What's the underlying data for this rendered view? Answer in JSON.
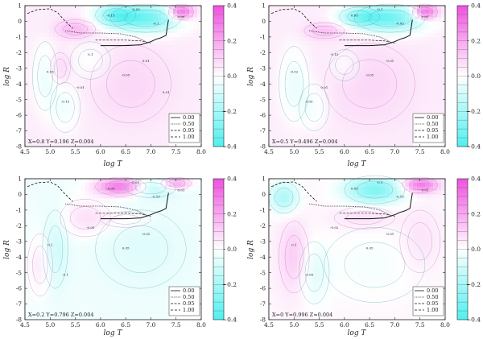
{
  "chart_data": [
    {
      "type": "heatmap",
      "panel": "top-left",
      "composition_label": "X=0.8  Y=0.196  Z=0.004",
      "xlabel": "log T",
      "ylabel": "log R",
      "xlim": [
        4.5,
        8.0
      ],
      "ylim": [
        -8,
        1
      ],
      "xticks": [
        "4.5",
        "5.0",
        "5.5",
        "6.0",
        "6.5",
        "7.0",
        "7.5",
        "8.0"
      ],
      "yticks": [
        "1",
        "0",
        "-1",
        "-2",
        "-3",
        "-4",
        "-5",
        "-6",
        "-7",
        "-8"
      ],
      "colorbar": {
        "range": [
          -0.4,
          0.4
        ],
        "ticks": [
          "0.4",
          "0.2",
          "0.0",
          "−0.2",
          "−0.4"
        ]
      },
      "legend": {
        "position": "bottom-right",
        "entries": [
          "0.00",
          "0.50",
          "0.95",
          "1.00"
        ]
      },
      "contour_labels": [
        "-0.05",
        "-0.15",
        "-0.1",
        "0.05",
        "-0.15",
        "-0.05",
        "0.1",
        "0.05",
        "0.01",
        "-0.01",
        "0.01"
      ],
      "blobs": [
        {
          "x": 6.9,
          "y": 0.2,
          "v": -0.35,
          "rx": 0.7,
          "ry": 0.9
        },
        {
          "x": 6.3,
          "y": 0.4,
          "v": -0.25,
          "rx": 0.4,
          "ry": 0.7
        },
        {
          "x": 7.6,
          "y": 0.6,
          "v": 0.35,
          "rx": 0.25,
          "ry": 0.5
        },
        {
          "x": 4.9,
          "y": -3.5,
          "v": -0.08,
          "rx": 0.25,
          "ry": 2.2
        },
        {
          "x": 5.3,
          "y": -5.5,
          "v": -0.07,
          "rx": 0.3,
          "ry": 1.6
        },
        {
          "x": 5.2,
          "y": -3.0,
          "v": 0.06,
          "rx": 0.2,
          "ry": 1.0
        },
        {
          "x": 6.6,
          "y": -4.0,
          "v": 0.05,
          "rx": 0.8,
          "ry": 2.5
        },
        {
          "x": 5.8,
          "y": -2.5,
          "v": -0.05,
          "rx": 0.4,
          "ry": 1.2
        },
        {
          "x": 5.5,
          "y": -0.5,
          "v": 0.12,
          "rx": 0.4,
          "ry": 0.6
        }
      ],
      "base": 0.04
    },
    {
      "type": "heatmap",
      "panel": "top-right",
      "composition_label": "X=0.5  Y=0.496  Z=0.004",
      "xlabel": "log T",
      "ylabel": "log R",
      "xlim": [
        4.5,
        8.0
      ],
      "ylim": [
        -8,
        1
      ],
      "xticks": [
        "4.5",
        "5.0",
        "5.5",
        "6.0",
        "6.5",
        "7.0",
        "7.5",
        "8.0"
      ],
      "yticks": [
        "1",
        "0",
        "-1",
        "-2",
        "-3",
        "-4",
        "-5",
        "-6",
        "-7",
        "-8"
      ],
      "colorbar": {
        "range": [
          -0.4,
          0.4
        ],
        "ticks": [
          "0.4",
          "0.2",
          "0.0",
          "−0.2",
          "−0.4"
        ]
      },
      "legend": {
        "position": "bottom-right",
        "entries": [
          "0.00",
          "0.50",
          "0.95",
          "1.00"
        ]
      },
      "contour_labels": [
        "-0.1",
        "0.05",
        "-0.05",
        "-0.02",
        "0.05",
        "-0.05",
        "-0.15",
        "0.01",
        "-0.01",
        "0.01"
      ],
      "blobs": [
        {
          "x": 6.9,
          "y": 0.2,
          "v": -0.35,
          "rx": 0.7,
          "ry": 0.9
        },
        {
          "x": 6.3,
          "y": 0.3,
          "v": -0.2,
          "rx": 0.4,
          "ry": 0.6
        },
        {
          "x": 7.6,
          "y": 0.6,
          "v": 0.35,
          "rx": 0.25,
          "ry": 0.5
        },
        {
          "x": 5.0,
          "y": -4.0,
          "v": -0.08,
          "rx": 0.3,
          "ry": 2.4
        },
        {
          "x": 5.4,
          "y": -5.5,
          "v": -0.06,
          "rx": 0.3,
          "ry": 1.5
        },
        {
          "x": 6.5,
          "y": -4.0,
          "v": 0.05,
          "rx": 0.9,
          "ry": 2.6
        },
        {
          "x": 5.6,
          "y": -0.6,
          "v": 0.1,
          "rx": 0.4,
          "ry": 0.5
        },
        {
          "x": 6.0,
          "y": -2.8,
          "v": -0.05,
          "rx": 0.3,
          "ry": 1.0
        }
      ],
      "base": 0.04
    },
    {
      "type": "heatmap",
      "panel": "bottom-left",
      "composition_label": "X=0.2  Y=0.796  Z=0.004",
      "xlabel": "log T",
      "ylabel": "log R",
      "xlim": [
        4.5,
        8.0
      ],
      "ylim": [
        -8,
        1
      ],
      "xticks": [
        "4.5",
        "5.0",
        "5.5",
        "6.0",
        "6.5",
        "7.0",
        "7.5",
        "8.0"
      ],
      "yticks": [
        "1",
        "0",
        "-1",
        "-2",
        "-3",
        "-4",
        "-5",
        "-6",
        "-7",
        "-8"
      ],
      "colorbar": {
        "range": [
          -0.4,
          0.4
        ],
        "ticks": [
          "0.4",
          "0.2",
          "0.0",
          "−0.2",
          "−0.4"
        ]
      },
      "legend": {
        "position": "bottom-right",
        "entries": [
          "0.00",
          "0.50",
          "0.95",
          "1.00"
        ]
      },
      "contour_labels": [
        "0.05",
        "-0.05",
        "-0.15",
        "0.1",
        "-0.1",
        "0.05",
        "-0.05",
        "0.01",
        "-0.01"
      ],
      "blobs": [
        {
          "x": 6.4,
          "y": 0.5,
          "v": 0.35,
          "rx": 0.5,
          "ry": 0.6
        },
        {
          "x": 7.0,
          "y": 0.4,
          "v": -0.15,
          "rx": 0.5,
          "ry": 0.6
        },
        {
          "x": 7.5,
          "y": 0.7,
          "v": 0.25,
          "rx": 0.3,
          "ry": 0.4
        },
        {
          "x": 4.8,
          "y": -4.5,
          "v": 0.08,
          "rx": 0.25,
          "ry": 2.0
        },
        {
          "x": 5.1,
          "y": -3.5,
          "v": -0.08,
          "rx": 0.25,
          "ry": 2.5
        },
        {
          "x": 5.7,
          "y": -1.5,
          "v": 0.1,
          "rx": 0.5,
          "ry": 1.2
        },
        {
          "x": 6.8,
          "y": -3.5,
          "v": -0.04,
          "rx": 0.9,
          "ry": 2.5
        },
        {
          "x": 6.5,
          "y": -1.6,
          "v": 0.05,
          "rx": 0.5,
          "ry": 0.5
        }
      ],
      "base": -0.03
    },
    {
      "type": "heatmap",
      "panel": "bottom-right",
      "composition_label": "X=0  Y=0.996  Z=0.004",
      "xlabel": "log T",
      "ylabel": "log R",
      "xlim": [
        4.5,
        8.0
      ],
      "ylim": [
        -8,
        1
      ],
      "xticks": [
        "4.5",
        "5.0",
        "5.5",
        "6.0",
        "6.5",
        "7.0",
        "7.5",
        "8.0"
      ],
      "yticks": [
        "1",
        "0",
        "-1",
        "-2",
        "-3",
        "-4",
        "-5",
        "-6",
        "-7",
        "-8"
      ],
      "colorbar": {
        "range": [
          -0.4,
          0.4
        ],
        "ticks": [
          "0.4",
          "0.2",
          "0.0",
          "−0.2",
          "−0.4"
        ]
      },
      "legend": {
        "position": "bottom-right",
        "entries": [
          "0.00",
          "0.50",
          "0.95",
          "1.00"
        ]
      },
      "contour_labels": [
        "-0.1",
        "0.05",
        "-0.15",
        "0.1",
        "-0.05",
        "0.05",
        "-0.02",
        "0.01",
        "-0.01"
      ],
      "blobs": [
        {
          "x": 6.6,
          "y": 0.3,
          "v": -0.3,
          "rx": 0.6,
          "ry": 0.9
        },
        {
          "x": 7.5,
          "y": 0.6,
          "v": 0.3,
          "rx": 0.35,
          "ry": 0.5
        },
        {
          "x": 4.8,
          "y": -0.2,
          "v": -0.2,
          "rx": 0.3,
          "ry": 1.0
        },
        {
          "x": 5.0,
          "y": -4.0,
          "v": 0.1,
          "rx": 0.3,
          "ry": 2.3
        },
        {
          "x": 5.4,
          "y": -5.0,
          "v": -0.08,
          "rx": 0.3,
          "ry": 2.0
        },
        {
          "x": 6.6,
          "y": -4.5,
          "v": -0.04,
          "rx": 1.0,
          "ry": 2.4
        },
        {
          "x": 6.4,
          "y": -1.5,
          "v": 0.06,
          "rx": 0.6,
          "ry": 0.7
        },
        {
          "x": 7.5,
          "y": -3.0,
          "v": 0.05,
          "rx": 0.4,
          "ry": 2.0
        }
      ],
      "base": 0.02
    }
  ],
  "curves": {
    "dashed_upper": {
      "x": [
        4.55,
        4.75,
        5.0,
        5.15,
        5.3,
        5.45
      ],
      "y": [
        0.5,
        0.75,
        0.8,
        0.55,
        0.0,
        -0.45
      ]
    },
    "dotted": {
      "x": [
        5.3,
        5.6,
        6.0,
        6.4,
        6.7,
        6.9
      ],
      "y": [
        -0.6,
        -0.75,
        -0.75,
        -0.8,
        -1.0,
        -1.3
      ]
    },
    "dashed_lower": {
      "x": [
        5.9,
        6.2,
        6.5,
        6.8,
        7.0
      ],
      "y": [
        -1.2,
        -1.2,
        -1.2,
        -1.25,
        -1.4
      ]
    },
    "solid": {
      "x": [
        6.0,
        6.5,
        6.8,
        7.0,
        7.1,
        7.2,
        7.3,
        7.35
      ],
      "y": [
        -1.55,
        -1.55,
        -1.5,
        -1.3,
        -1.15,
        -1.05,
        -0.9,
        0.1
      ]
    }
  }
}
